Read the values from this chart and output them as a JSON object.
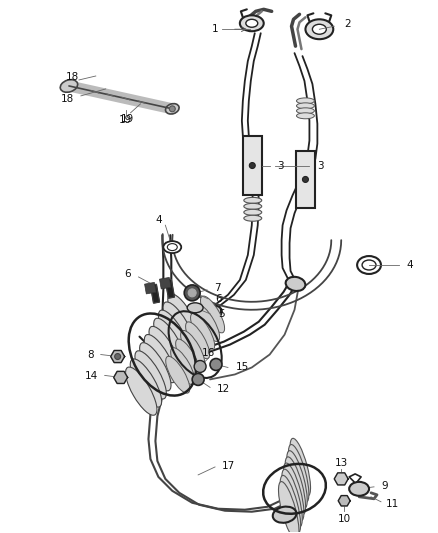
{
  "bg_color": "#ffffff",
  "line_color": "#1a1a1a",
  "gray": "#888888",
  "dark": "#222222",
  "mid": "#555555",
  "light_gray": "#aaaaaa",
  "figsize": [
    4.38,
    5.33
  ],
  "dpi": 100
}
